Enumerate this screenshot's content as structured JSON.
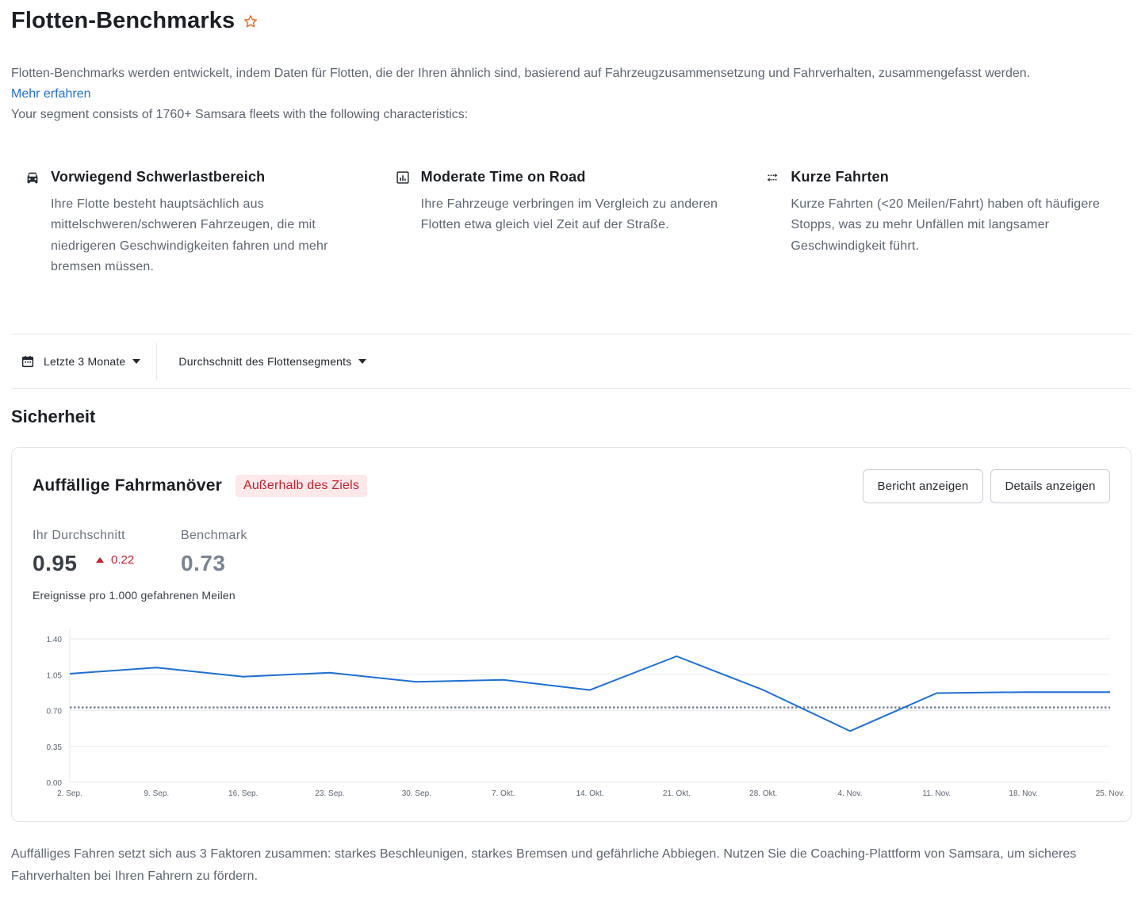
{
  "page": {
    "title": "Flotten-Benchmarks",
    "intro": "Flotten-Benchmarks werden entwickelt, indem Daten für Flotten, die der Ihren ähnlich sind, basierend auf Fahrzeugzusammensetzung und Fahrverhalten, zusammengefasst werden.",
    "learn_more": "Mehr erfahren",
    "segment_text": "Your segment consists of 1760+ Samsara fleets with the following characteristics:"
  },
  "traits": [
    {
      "icon": "car-icon",
      "title": "Vorwiegend Schwerlastbereich",
      "text": "Ihre Flotte besteht hauptsächlich aus mittelschweren/schweren Fahrzeugen, die mit niedrigeren Geschwindigkeiten fahren und mehr bremsen müssen."
    },
    {
      "icon": "bar-chart-icon",
      "title": "Moderate Time on Road",
      "text": "Ihre Fahrzeuge verbringen im Vergleich zu anderen Flotten etwa gleich viel Zeit auf der Straße."
    },
    {
      "icon": "swap-arrows-icon",
      "title": "Kurze Fahrten",
      "text": "Kurze Fahrten (<20 Meilen/Fahrt) haben oft häufigere Stopps, was zu mehr Unfällen mit langsamer Geschwindigkeit führt."
    }
  ],
  "filters": {
    "period": "Letzte 3 Monate",
    "comparison": "Durchschnitt des Flottensegments"
  },
  "section": {
    "title": "Sicherheit"
  },
  "card": {
    "title": "Auffällige Fahrmanöver",
    "badge": "Außerhalb des Ziels",
    "report_button": "Bericht anzeigen",
    "details_button": "Details anzeigen",
    "own_label": "Ihr Durchschnitt",
    "own_value": "0.95",
    "delta": "0.22",
    "bench_label": "Benchmark",
    "bench_value": "0.73",
    "unit": "Ereignisse pro 1.000 gefahrenen Meilen"
  },
  "chart_data": {
    "type": "line",
    "x": [
      "2. Sep.",
      "9. Sep.",
      "16. Sep.",
      "23. Sep.",
      "30. Sep.",
      "7. Okt.",
      "14. Okt.",
      "21. Okt.",
      "28. Okt.",
      "4. Nov.",
      "11. Nov.",
      "18. Nov.",
      "25. Nov."
    ],
    "series": [
      {
        "values": [
          1.06,
          1.12,
          1.03,
          1.07,
          0.98,
          1.0,
          0.9,
          1.23,
          0.9,
          0.5,
          0.87,
          0.88,
          0.88
        ],
        "color": "#1f6fd1"
      }
    ],
    "benchmark": 0.73,
    "y_ticks": [
      "0.00",
      "0.35",
      "0.70",
      "1.05",
      "1.40"
    ],
    "ylim": [
      0,
      1.4
    ],
    "grid": true
  },
  "footer": {
    "note": "Auffälliges Fahren setzt sich aus 3 Faktoren zusammen: starkes Beschleunigen, starkes Bremsen und gefährliche Abbiegen. Nutzen Sie die Coaching-Plattform von Samsara, um sicheres Fahrverhalten bei Ihren Fahrern zu fördern."
  }
}
